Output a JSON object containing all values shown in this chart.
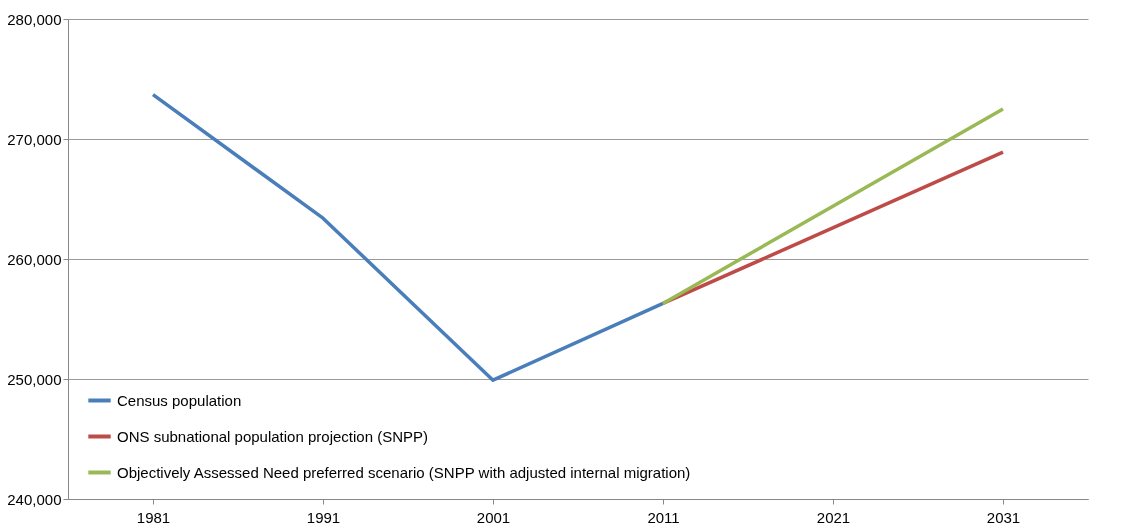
{
  "chart_data": {
    "type": "line",
    "categories": [
      "1981",
      "1991",
      "2001",
      "2011",
      "2021",
      "2031"
    ],
    "series": [
      {
        "name": "Census population",
        "color": "#4a7ebb",
        "values": [
          273700,
          263400,
          249900,
          256300,
          null,
          null
        ]
      },
      {
        "name": "ONS subnational population projection (SNPP)",
        "color": "#be4b48",
        "values": [
          null,
          null,
          null,
          256300,
          null,
          268900
        ]
      },
      {
        "name": "Objectively Assessed Need preferred scenario (SNPP with adjusted internal migration)",
        "color": "#98b954",
        "values": [
          null,
          null,
          null,
          256300,
          null,
          272500
        ]
      }
    ],
    "ylim": [
      240000,
      280000
    ],
    "yticks": [
      {
        "value": 240000,
        "label": "240,000"
      },
      {
        "value": 250000,
        "label": "250,000"
      },
      {
        "value": 260000,
        "label": "260,000"
      },
      {
        "value": 270000,
        "label": "270,000"
      },
      {
        "value": 280000,
        "label": "280,000"
      }
    ],
    "grid": "y",
    "legend": "bottom left",
    "marker": "none",
    "line_style": "solid"
  }
}
